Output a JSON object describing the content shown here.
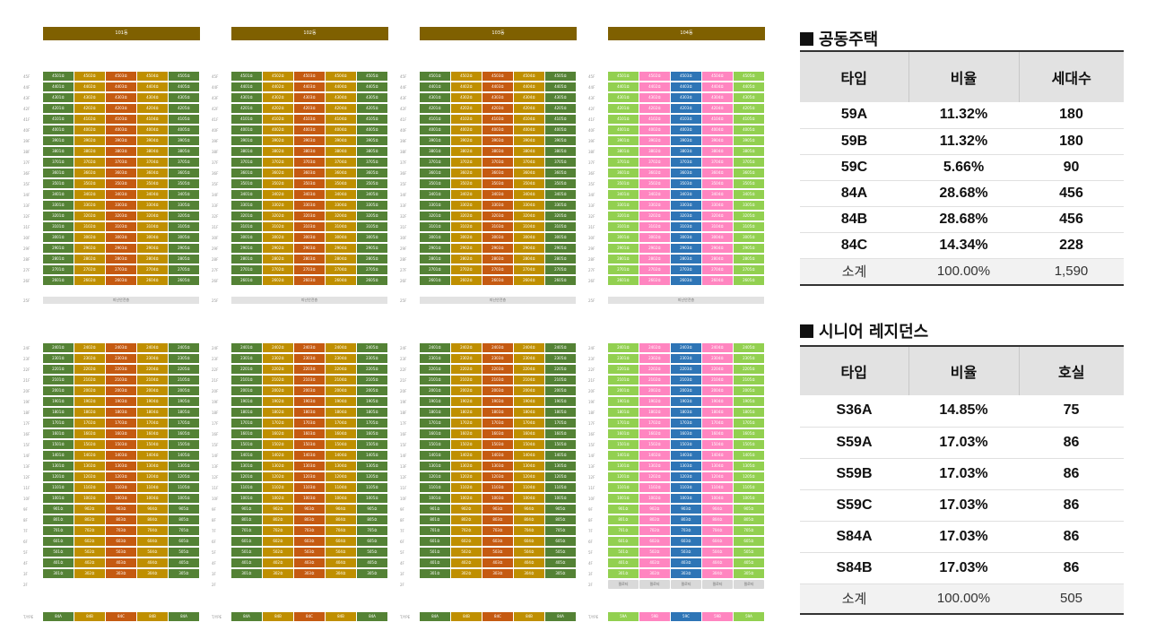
{
  "buildings": [
    {
      "name": "101동",
      "types": [
        "84A",
        "84B",
        "84C",
        "84B",
        "84A"
      ],
      "colors": [
        "#548235",
        "#bf8f00",
        "#c55a11",
        "#bf8f00",
        "#548235"
      ],
      "pilotis": false
    },
    {
      "name": "102동",
      "types": [
        "84A",
        "84B",
        "84C",
        "84B",
        "84A"
      ],
      "colors": [
        "#548235",
        "#bf8f00",
        "#c55a11",
        "#bf8f00",
        "#548235"
      ],
      "pilotis": false
    },
    {
      "name": "103동",
      "types": [
        "84A",
        "84B",
        "84C",
        "84B",
        "84A"
      ],
      "colors": [
        "#548235",
        "#bf8f00",
        "#c55a11",
        "#bf8f00",
        "#548235"
      ],
      "pilotis": false
    },
    {
      "name": "104동",
      "types": [
        "59A",
        "59B",
        "59C",
        "59B",
        "59A"
      ],
      "colors": [
        "#92d050",
        "#ff85c0",
        "#2e75b6",
        "#ff85c0",
        "#92d050"
      ],
      "pilotis": true
    }
  ],
  "refuge_floor_label": "피난안전층",
  "pilotis_label": "필로티",
  "type_row_label": "T/YPE",
  "public_housing": {
    "title": "공동주택",
    "headers": [
      "타입",
      "비율",
      "세대수"
    ],
    "rows": [
      [
        "59A",
        "11.32%",
        "180"
      ],
      [
        "59B",
        "11.32%",
        "180"
      ],
      [
        "59C",
        "5.66%",
        "90"
      ],
      [
        "84A",
        "28.68%",
        "456"
      ],
      [
        "84B",
        "28.68%",
        "456"
      ],
      [
        "84C",
        "14.34%",
        "228"
      ]
    ],
    "subtotal": [
      "소계",
      "100.00%",
      "1,590"
    ]
  },
  "senior_residence": {
    "title": "시니어 레지던스",
    "headers": [
      "타입",
      "비율",
      "호실"
    ],
    "rows": [
      [
        "S36A",
        "14.85%",
        "75"
      ],
      [
        "S59A",
        "17.03%",
        "86"
      ],
      [
        "S59B",
        "17.03%",
        "86"
      ],
      [
        "S59C",
        "17.03%",
        "86"
      ],
      [
        "S84A",
        "17.03%",
        "86"
      ],
      [
        "S84B",
        "17.03%",
        "86"
      ]
    ],
    "subtotal": [
      "소계",
      "100.00%",
      "505"
    ]
  }
}
